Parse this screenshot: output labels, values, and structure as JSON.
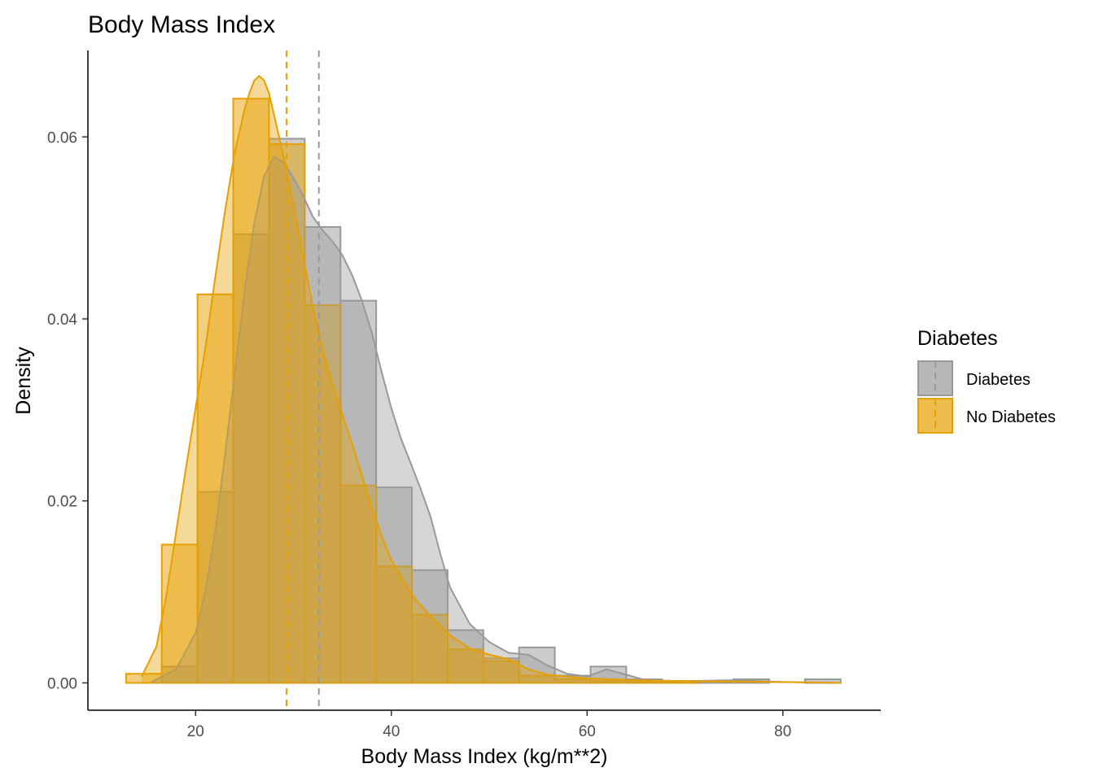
{
  "chart_data": {
    "type": "histogram",
    "title": "Body Mass Index",
    "xlabel": "Body Mass Index (kg/m**2)",
    "ylabel": "Density",
    "xlim": [
      9.0,
      90.0
    ],
    "ylim": [
      -0.003,
      0.0695
    ],
    "x_ticks": [
      20,
      40,
      60,
      80
    ],
    "y_ticks": [
      0.0,
      0.02,
      0.04,
      0.06
    ],
    "y_tick_labels": [
      "0.00",
      "0.02",
      "0.04",
      "0.06"
    ],
    "bin_edges": [
      12.9,
      16.55,
      20.2,
      23.85,
      27.5,
      31.15,
      34.8,
      38.45,
      42.1,
      45.75,
      49.4,
      53.05,
      56.7,
      60.35,
      64.0,
      67.65,
      71.3,
      74.95,
      78.6,
      82.25,
      85.9
    ],
    "legend": {
      "title": "Diabetes",
      "position": "right"
    },
    "series": [
      {
        "name": "Diabetes",
        "color": "#999999",
        "fill": "#999999",
        "mean": 32.6,
        "hist": [
          0.0,
          0.0018,
          0.021,
          0.0493,
          0.0598,
          0.0501,
          0.042,
          0.0215,
          0.0124,
          0.0058,
          0.0027,
          0.0039,
          0.0008,
          0.0018,
          0.0004,
          0.0002,
          0.0001,
          0.0004,
          0.0,
          0.0004
        ],
        "density": {
          "x": [
            15.5,
            18,
            20,
            21,
            22,
            23,
            24,
            25,
            26,
            27,
            28,
            29,
            30,
            31,
            32,
            33,
            34,
            35,
            36,
            37,
            38,
            39,
            40,
            41,
            42,
            43,
            44,
            45,
            46,
            48,
            50,
            52,
            54,
            56,
            58,
            60,
            62,
            64,
            66,
            70,
            75,
            80,
            86
          ],
          "y": [
            0.0001,
            0.0015,
            0.0055,
            0.01,
            0.0165,
            0.025,
            0.034,
            0.043,
            0.0505,
            0.0557,
            0.0578,
            0.0572,
            0.0555,
            0.0535,
            0.0512,
            0.0497,
            0.0485,
            0.047,
            0.0448,
            0.042,
            0.0385,
            0.0342,
            0.0302,
            0.0268,
            0.0241,
            0.0213,
            0.0183,
            0.0142,
            0.0105,
            0.0065,
            0.0045,
            0.0033,
            0.0031,
            0.0019,
            0.001,
            0.0007,
            0.0015,
            0.0009,
            0.0003,
            0.0002,
            0.0003,
            0.0001,
            0.0
          ]
        }
      },
      {
        "name": "No Diabetes",
        "color": "#E69F00",
        "fill": "#E69F00",
        "mean": 29.3,
        "hist": [
          0.001,
          0.0152,
          0.0427,
          0.0642,
          0.0592,
          0.0415,
          0.0217,
          0.0128,
          0.0075,
          0.0037,
          0.0024,
          0.0008,
          0.0004,
          0.0002,
          0.0001,
          0.0001,
          0.0,
          0.0,
          0.0,
          0.0
        ],
        "density": {
          "x": [
            14.5,
            16,
            17,
            18,
            19,
            20,
            21,
            22,
            23,
            24,
            25,
            25.5,
            26,
            26.5,
            27,
            27.5,
            28,
            29,
            30,
            31,
            32,
            33,
            34,
            35,
            36,
            37,
            38,
            39,
            40,
            42,
            44,
            46,
            48,
            50,
            52,
            54,
            56,
            58,
            60,
            65,
            70,
            80,
            86
          ],
          "y": [
            0.0007,
            0.004,
            0.0095,
            0.0165,
            0.0235,
            0.0302,
            0.0368,
            0.0445,
            0.0518,
            0.0583,
            0.063,
            0.0648,
            0.0662,
            0.0667,
            0.0662,
            0.0648,
            0.0625,
            0.0578,
            0.0525,
            0.0468,
            0.0412,
            0.0365,
            0.0328,
            0.0295,
            0.0262,
            0.0228,
            0.0192,
            0.0162,
            0.0135,
            0.0098,
            0.0073,
            0.0052,
            0.0038,
            0.0031,
            0.0026,
            0.0015,
            0.0009,
            0.0007,
            0.0005,
            0.0003,
            0.0002,
            0.0001,
            0.0
          ]
        }
      }
    ]
  }
}
